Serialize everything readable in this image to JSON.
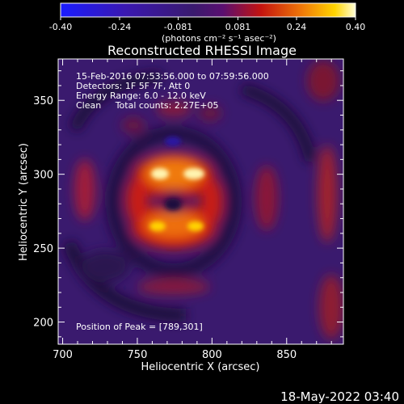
{
  "chart_data": {
    "type": "heatmap",
    "title": "Reconstructed RHESSI Image",
    "xlabel": "Heliocentric X (arcsec)",
    "ylabel": "Heliocentric Y (arcsec)",
    "xlim": [
      697,
      888
    ],
    "ylim": [
      185,
      378
    ],
    "xticks": [
      700,
      750,
      800,
      850
    ],
    "yticks": [
      200,
      250,
      300,
      350
    ],
    "colorbar": {
      "min": -0.4,
      "max": 0.4,
      "ticks": [
        "-0.40",
        "-0.24",
        "-0.081",
        "0.081",
        "0.24",
        "0.40"
      ],
      "unit_label": "(photons cm⁻² s⁻¹ asec⁻²)"
    },
    "info_lines": [
      "15-Feb-2016 07:53:56.000 to 07:59:56.000",
      "Detectors: 1F 5F 7F, Att 0",
      "Energy Range: 6.0 - 12.0 keV",
      "Clean     Total counts: 2.27E+05"
    ],
    "peak_label": "Position of Peak = [789,301]",
    "peak": [
      789,
      301
    ],
    "sources": [
      {
        "x": 775,
        "y": 300,
        "value": 0.4
      },
      {
        "x": 775,
        "y": 270,
        "value": 0.3
      }
    ],
    "colors": {
      "negative": "#1e22ff",
      "zero": "#3a1a6e",
      "positive_high": "#ffffc8"
    }
  },
  "footer": {
    "date": "18-May-2022 03:40"
  }
}
